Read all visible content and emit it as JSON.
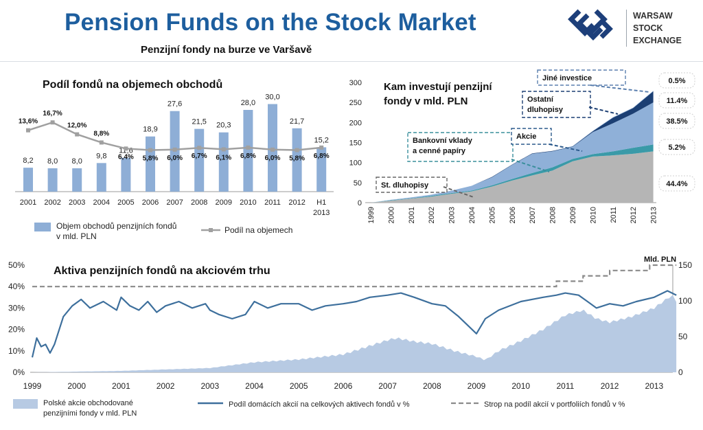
{
  "header": {
    "title": "Pension Funds on the Stock Market",
    "subtitle": "Penzijní fondy na burze ve Varšavě",
    "logo_lines": [
      "WARSAW",
      "STOCK",
      "EXCHANGE"
    ]
  },
  "colors": {
    "title_blue": "#1d5e9e",
    "bar_blue": "#8eaed6",
    "line_gray": "#a0a0a0",
    "st_bonds": "#b5b5b5",
    "deposits": "#3a9aa8",
    "equities": "#8fb0d8",
    "other_bonds": "#1c3f73",
    "other_inv": "#7ea3cf",
    "area_light": "#b7cae3",
    "line_dark": "#3d6f9c",
    "cap_dashed": "#8a8a8a"
  },
  "chart_data": [
    {
      "type": "bar",
      "title": "Podíl fondů na objemech obchodů",
      "categories": [
        "2001",
        "2002",
        "2003",
        "2004",
        "2005",
        "2006",
        "2007",
        "2008",
        "2009",
        "2010",
        "2011",
        "2012",
        "H1 2013"
      ],
      "value_labels": [
        "8,2",
        "8,0",
        "8,0",
        "9,8",
        "11,6",
        "18,9",
        "27,6",
        "21,5",
        "20,3",
        "28,0",
        "30,0",
        "21,7",
        "15,2"
      ],
      "share_labels": [
        "13,6%",
        "16,7%",
        "12,0%",
        "8,8%",
        "6,4%",
        "5,8%",
        "6,0%",
        "6,7%",
        "6,1%",
        "6,8%",
        "6,0%",
        "5,8%",
        "6,8%"
      ],
      "series": [
        {
          "name": "Objem obchodů penzijních fondů v mld. PLN",
          "kind": "bar",
          "values": [
            8.2,
            8.0,
            8.0,
            9.8,
            11.6,
            18.9,
            27.6,
            21.5,
            20.3,
            28.0,
            30.0,
            21.7,
            15.2
          ]
        },
        {
          "name": "Podíl na objemech",
          "kind": "line",
          "values": [
            13.6,
            16.7,
            12.0,
            8.8,
            6.4,
            5.8,
            6.0,
            6.7,
            6.1,
            6.8,
            6.0,
            5.8,
            6.8
          ]
        }
      ],
      "legend": [
        "Objem obchodů penzijních fondů",
        "v mld. PLN",
        "Podíl na objemech"
      ],
      "legend_position": "bottom"
    },
    {
      "type": "area",
      "title_lines": [
        "Kam investují penzijní",
        "fondy v mld. PLN"
      ],
      "x": [
        "1999",
        "2000",
        "2001",
        "2002",
        "2003",
        "2004",
        "2005",
        "2006",
        "2007",
        "2008",
        "2009",
        "2010",
        "2011",
        "2012",
        "2013"
      ],
      "ylim": [
        0,
        300
      ],
      "yticks": [
        "0",
        "50",
        "100",
        "150",
        "200",
        "250",
        "300"
      ],
      "series": [
        {
          "name": "St. dluhopisy",
          "values": [
            0,
            5,
            10,
            15,
            22,
            28,
            40,
            55,
            68,
            80,
            103,
            115,
            118,
            122,
            128
          ]
        },
        {
          "name": "Bankovní vklady a cenné papíry",
          "values": [
            0,
            1,
            1,
            2,
            2,
            2,
            3,
            4,
            6,
            8,
            6,
            6,
            10,
            15,
            17
          ]
        },
        {
          "name": "Akcie",
          "values": [
            0,
            1,
            2,
            3,
            6,
            12,
            20,
            35,
            48,
            40,
            30,
            55,
            70,
            85,
            105
          ]
        },
        {
          "name": "Ostatní dluhopisy",
          "values": [
            0,
            0,
            0,
            0,
            0,
            0,
            1,
            1,
            1,
            1,
            1,
            2,
            14,
            14,
            28
          ]
        },
        {
          "name": "Jiné investice",
          "values": [
            0,
            0,
            0,
            0,
            0,
            0,
            0,
            0,
            0,
            0,
            1,
            1,
            1,
            1,
            1
          ]
        }
      ],
      "shares": [
        "0.5%",
        "11.4%",
        "38.5%",
        "5.2%",
        "44.4%"
      ]
    },
    {
      "type": "area",
      "title": "Aktiva penzijních fondů na akciovém trhu",
      "x_labels": [
        "1999",
        "2000",
        "2001",
        "2002",
        "2003",
        "2004",
        "2005",
        "2006",
        "2007",
        "2008",
        "2009",
        "2010",
        "2011",
        "2012",
        "2013"
      ],
      "y_left_ticks": [
        "0%",
        "10%",
        "20%",
        "30%",
        "40%",
        "50%"
      ],
      "y_right_ticks": [
        "0",
        "50",
        "100",
        "150"
      ],
      "y_right_unit": "Mld. PLN",
      "series": [
        {
          "name": "Polské akcie obchodované penzijními fondy v mld. PLN",
          "axis": "right",
          "kind": "area",
          "anchors": [
            [
              1999.0,
              0
            ],
            [
              2000.0,
              1
            ],
            [
              2001.0,
              2
            ],
            [
              2002.0,
              4
            ],
            [
              2003.0,
              6
            ],
            [
              2003.5,
              10
            ],
            [
              2004.0,
              14
            ],
            [
              2005.0,
              18
            ],
            [
              2006.0,
              25
            ],
            [
              2006.5,
              35
            ],
            [
              2007.0,
              45
            ],
            [
              2007.2,
              48
            ],
            [
              2007.6,
              43
            ],
            [
              2008.0,
              40
            ],
            [
              2008.5,
              30
            ],
            [
              2009.0,
              22
            ],
            [
              2009.2,
              17
            ],
            [
              2009.5,
              30
            ],
            [
              2010.0,
              44
            ],
            [
              2010.5,
              60
            ],
            [
              2011.0,
              80
            ],
            [
              2011.4,
              87
            ],
            [
              2011.7,
              75
            ],
            [
              2012.0,
              70
            ],
            [
              2012.5,
              78
            ],
            [
              2013.0,
              90
            ],
            [
              2013.4,
              108
            ],
            [
              2013.5,
              100
            ]
          ]
        },
        {
          "name": "Podíl domácích akcií na celkových aktivech fondů v %",
          "axis": "left",
          "kind": "line",
          "anchors": [
            [
              1999.0,
              7
            ],
            [
              1999.1,
              16
            ],
            [
              1999.2,
              12
            ],
            [
              1999.3,
              13
            ],
            [
              1999.4,
              9
            ],
            [
              1999.5,
              13
            ],
            [
              1999.7,
              26
            ],
            [
              1999.9,
              31
            ],
            [
              2000.1,
              34
            ],
            [
              2000.3,
              30
            ],
            [
              2000.6,
              33
            ],
            [
              2000.9,
              29
            ],
            [
              2001.0,
              35
            ],
            [
              2001.2,
              31
            ],
            [
              2001.4,
              29
            ],
            [
              2001.6,
              33
            ],
            [
              2001.8,
              28
            ],
            [
              2002.0,
              31
            ],
            [
              2002.3,
              33
            ],
            [
              2002.6,
              30
            ],
            [
              2002.9,
              32
            ],
            [
              2003.0,
              29
            ],
            [
              2003.2,
              27
            ],
            [
              2003.5,
              25
            ],
            [
              2003.8,
              27
            ],
            [
              2004.0,
              33
            ],
            [
              2004.3,
              30
            ],
            [
              2004.6,
              32
            ],
            [
              2005.0,
              32
            ],
            [
              2005.3,
              29
            ],
            [
              2005.6,
              31
            ],
            [
              2006.0,
              32
            ],
            [
              2006.3,
              33
            ],
            [
              2006.6,
              35
            ],
            [
              2007.0,
              36
            ],
            [
              2007.3,
              37
            ],
            [
              2007.6,
              35
            ],
            [
              2008.0,
              32
            ],
            [
              2008.3,
              31
            ],
            [
              2008.6,
              26
            ],
            [
              2008.9,
              20
            ],
            [
              2009.0,
              18
            ],
            [
              2009.2,
              25
            ],
            [
              2009.5,
              29
            ],
            [
              2010.0,
              33
            ],
            [
              2010.5,
              35
            ],
            [
              2010.8,
              36
            ],
            [
              2011.0,
              37
            ],
            [
              2011.3,
              36
            ],
            [
              2011.5,
              33
            ],
            [
              2011.7,
              30
            ],
            [
              2012.0,
              32
            ],
            [
              2012.3,
              31
            ],
            [
              2012.6,
              33
            ],
            [
              2013.0,
              35
            ],
            [
              2013.3,
              38
            ],
            [
              2013.5,
              36
            ]
          ]
        },
        {
          "name": "Strop na podíl akcií v portfoliích fondů v %",
          "axis": "left",
          "kind": "dashed-step",
          "anchors": [
            [
              1999.0,
              40
            ],
            [
              2010.8,
              40
            ],
            [
              2010.8,
              42.5
            ],
            [
              2011.4,
              42.5
            ],
            [
              2011.4,
              45
            ],
            [
              2012.0,
              45
            ],
            [
              2012.0,
              47.5
            ],
            [
              2012.9,
              47.5
            ],
            [
              2012.9,
              50
            ],
            [
              2013.5,
              50
            ]
          ]
        }
      ],
      "legend": [
        "Polské akcie obchodované",
        "penzijními fondy v mld. PLN",
        "Podíl domácích akcií na celkových aktivech fondů v %",
        "Strop na podíl akcií v portfoliích fondů v %"
      ],
      "legend_position": "bottom"
    }
  ]
}
